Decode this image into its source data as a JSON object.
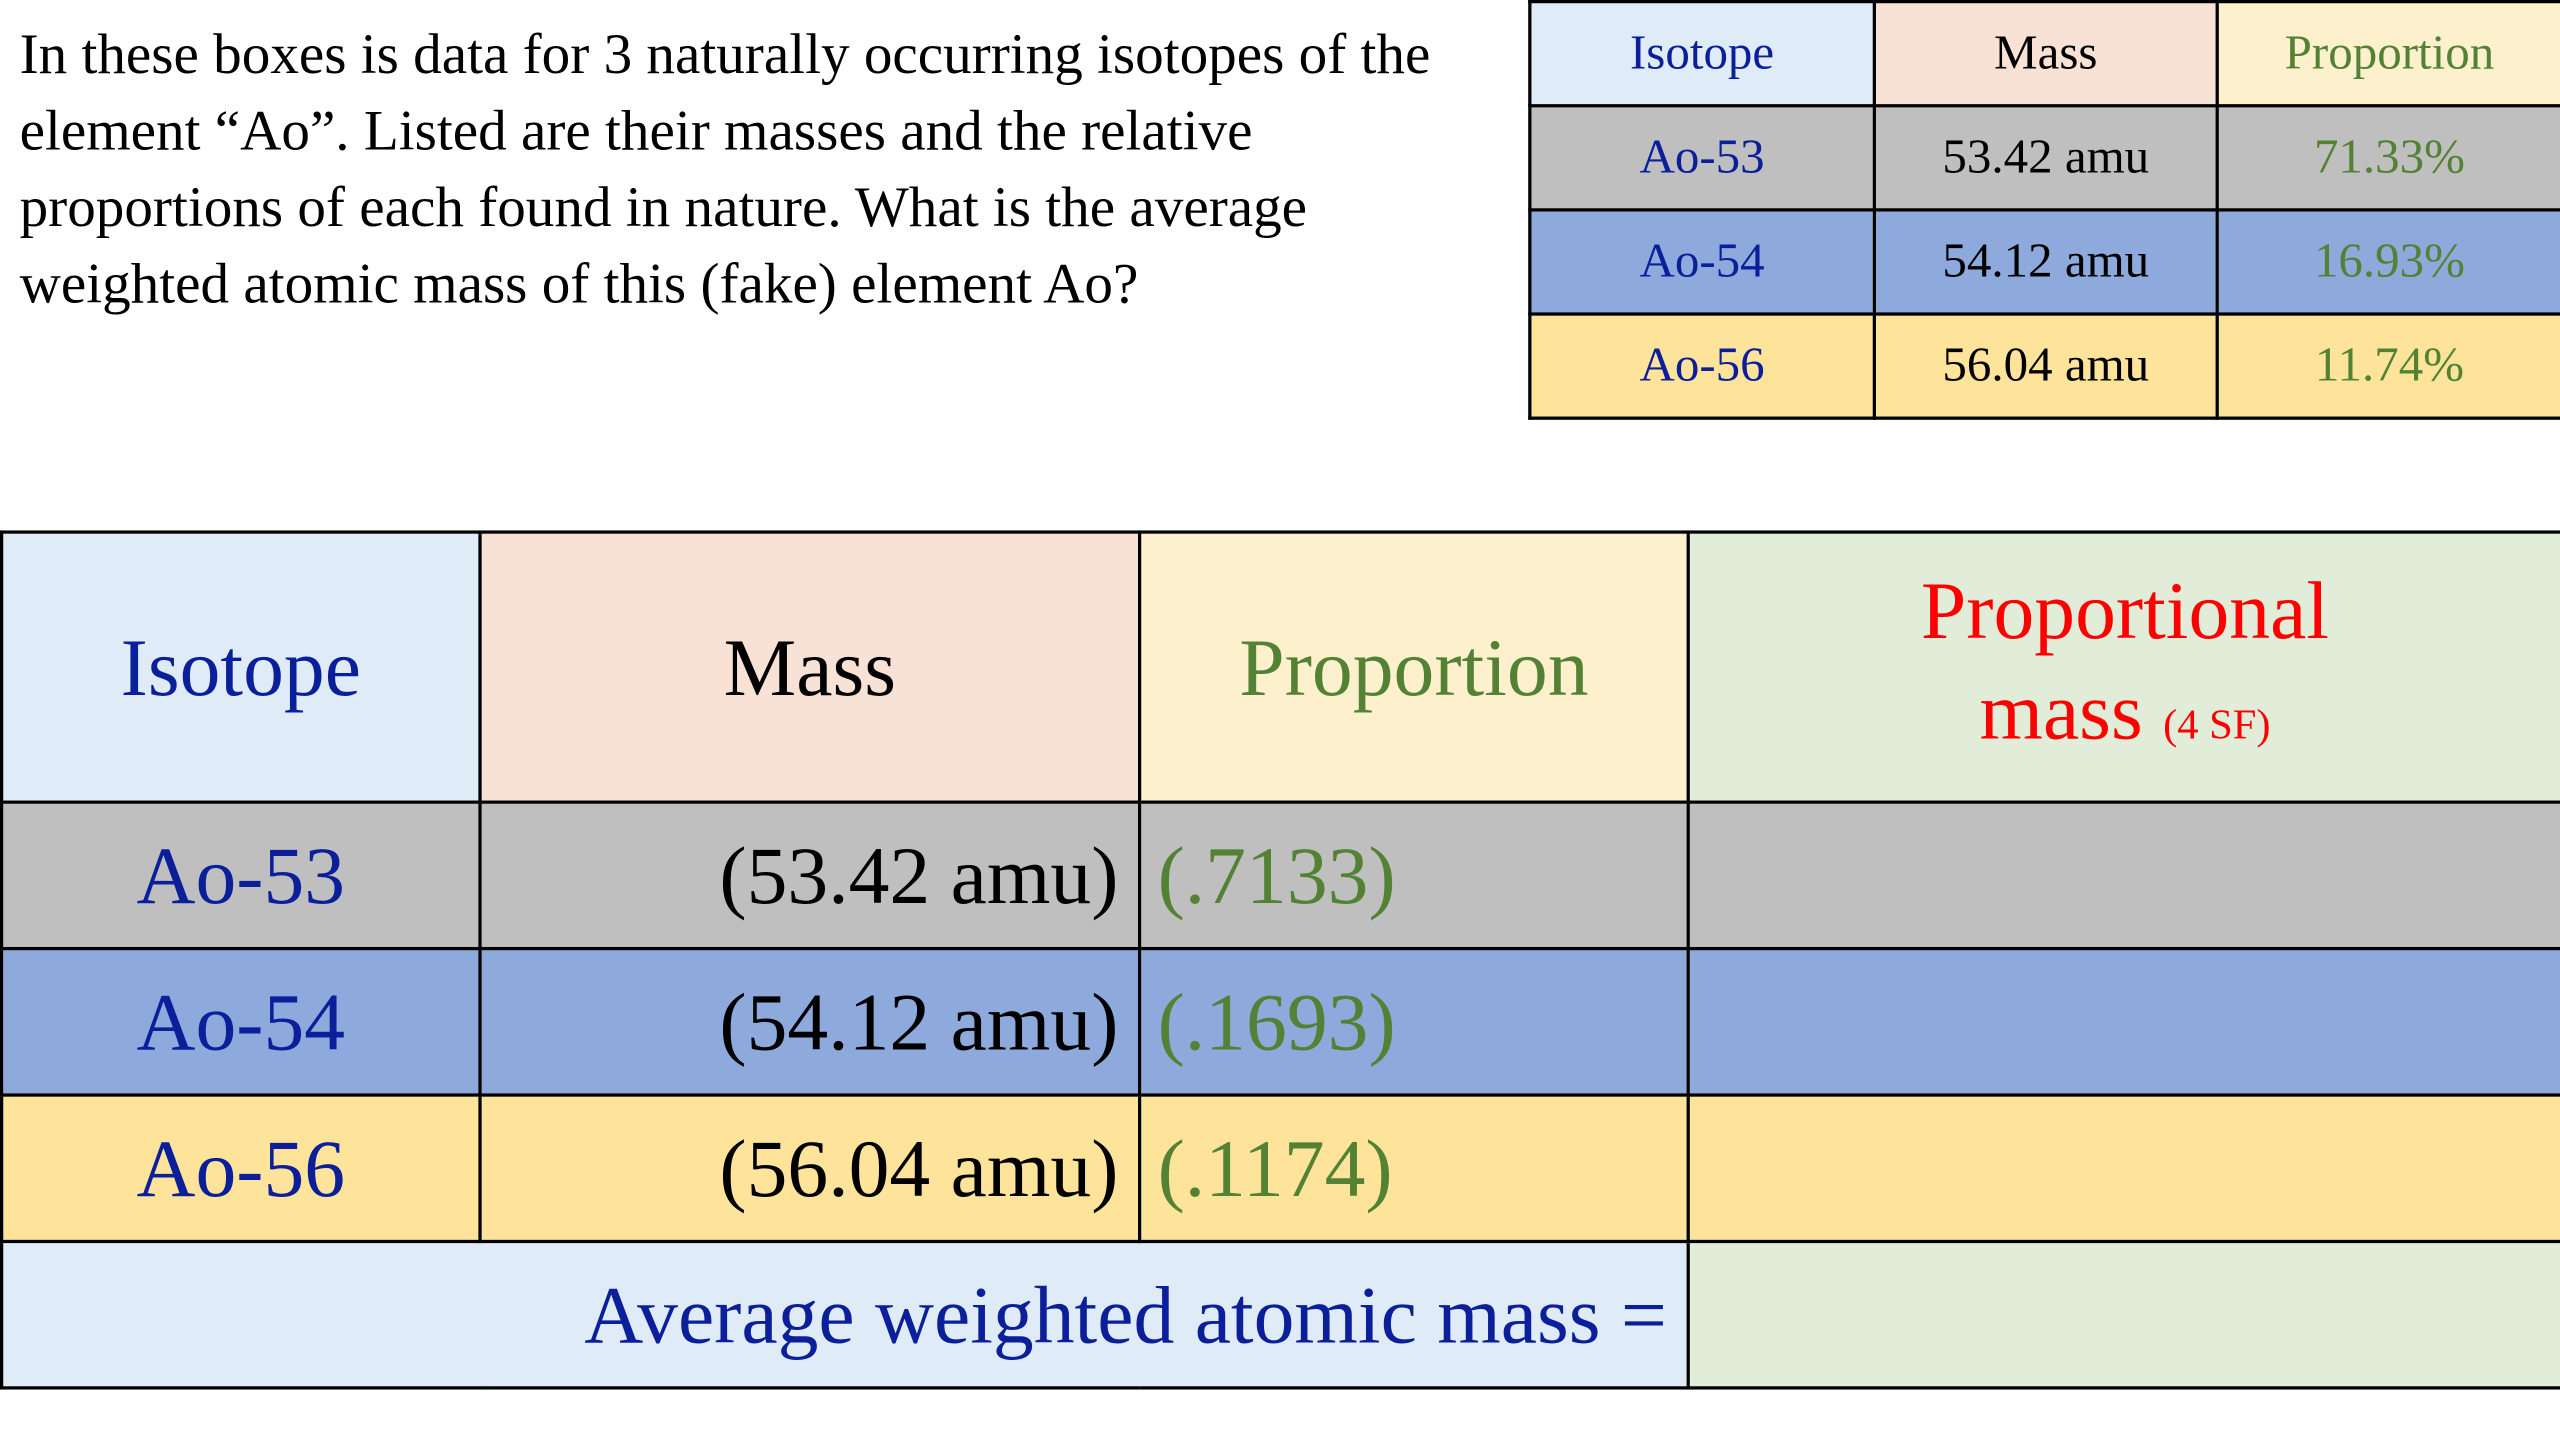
{
  "prompt": "In these boxes is data for 3 naturally occurring isotopes of the element “Ao”.  Listed are their masses and the relative proportions of each found in nature.  What is the average weighted atomic mass of this (fake) element Ao?",
  "data_table": {
    "headers": {
      "isotope": "Isotope",
      "mass": "Mass",
      "proportion": "Proportion"
    },
    "rows": [
      {
        "isotope": "Ao-53",
        "mass": "53.42 amu",
        "proportion": "71.33%"
      },
      {
        "isotope": "Ao-54",
        "mass": "54.12 amu",
        "proportion": "16.93%"
      },
      {
        "isotope": "Ao-56",
        "mass": "56.04 amu",
        "proportion": "11.74%"
      }
    ]
  },
  "worksheet": {
    "headers": {
      "isotope": "Isotope",
      "mass": "Mass",
      "proportion": "Proportion",
      "proportional_mass_line1": "Proportional",
      "proportional_mass_line2": "mass",
      "proportional_mass_note": "(4 SF)"
    },
    "rows": [
      {
        "isotope": "Ao-53",
        "mass": "(53.42 amu)",
        "proportion": "(.7133)",
        "proportional_mass": ""
      },
      {
        "isotope": "Ao-54",
        "mass": "(54.12 amu)",
        "proportion": "(.1693)",
        "proportional_mass": ""
      },
      {
        "isotope": "Ao-56",
        "mass": "(56.04 amu)",
        "proportion": "(.1174)",
        "proportional_mass": ""
      }
    ],
    "total_label": "Average weighted atomic mass =",
    "total_value": ""
  },
  "colors": {
    "header_isotope_bg": "#dfebf7",
    "header_mass_bg": "#f8e1d5",
    "header_proportion_bg": "#fdf0cd",
    "header_proportional_mass_bg": "#e1ecd9",
    "row_ao53_bg": "#bfbfbf",
    "row_ao54_bg": "#8eaadc",
    "row_ao56_bg": "#fde49a",
    "isotope_text": "#0b1f9a",
    "proportion_text": "#548235",
    "proportional_mass_text": "#ff0000"
  }
}
